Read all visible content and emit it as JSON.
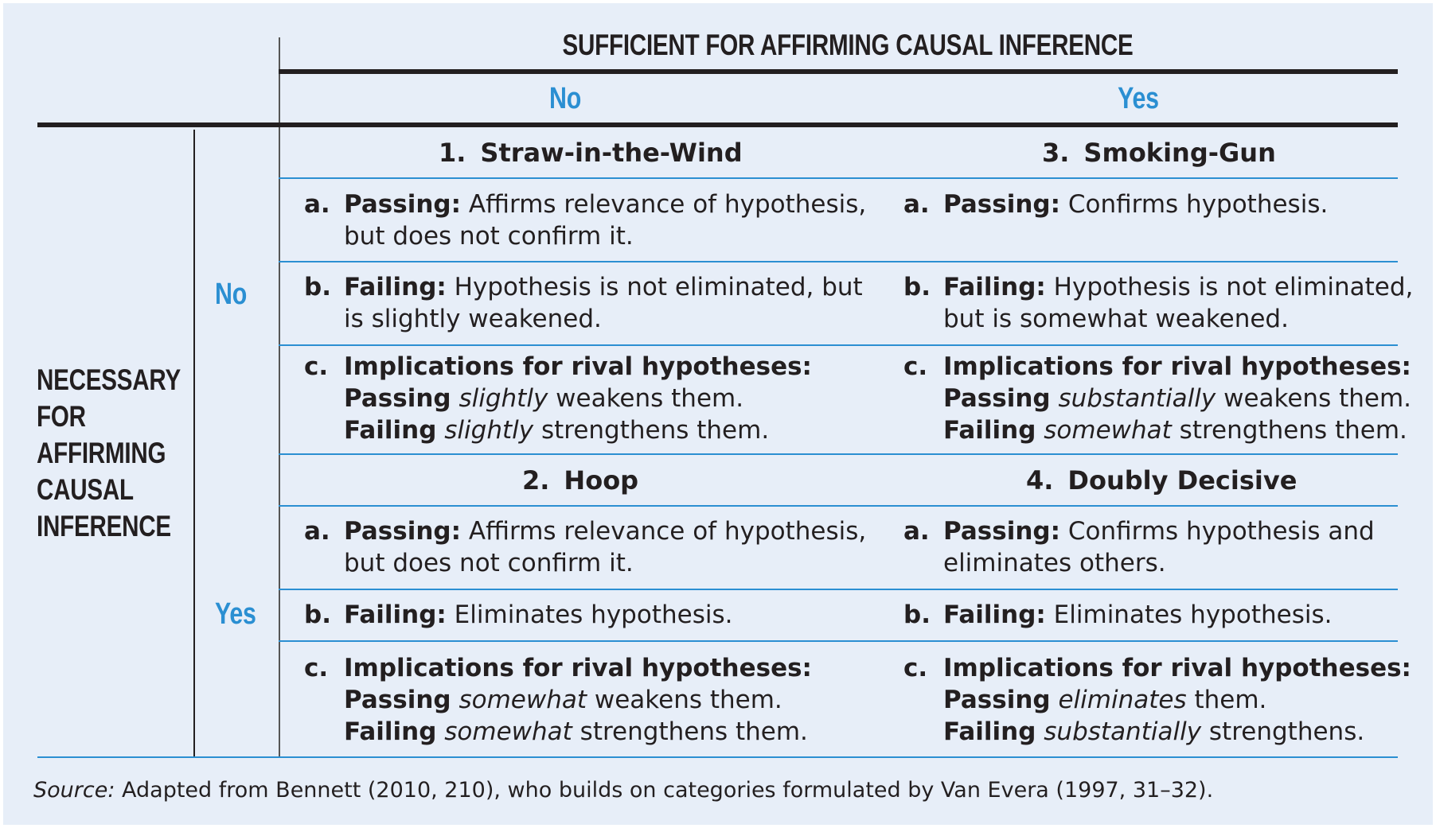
{
  "header": {
    "sufficient_title": "SUFFICIENT FOR AFFIRMING CAUSAL INFERENCE",
    "col_no": "No",
    "col_yes": "Yes"
  },
  "side": {
    "necessary_lines": [
      "NECESSARY",
      "FOR",
      "AFFIRMING",
      "CAUSAL",
      "INFERENCE"
    ],
    "row_no": "No",
    "row_yes": "Yes"
  },
  "tests": {
    "straw": {
      "num": "1.",
      "name": "Straw-in-the-Wind",
      "a": {
        "letter": "a.",
        "label": "Passing:",
        "line1": " Affirms relevance of hypothesis,",
        "line2": "but does not confirm it."
      },
      "b": {
        "letter": "b.",
        "label": "Failing:",
        "line1": " Hypothesis is not eliminated, but",
        "line2": "is slightly weakened."
      },
      "c": {
        "letter": "c.",
        "heading": "Implications for rival hypotheses:",
        "pass_label": "Passing",
        "pass_adv": "slightly",
        "pass_rest": " weakens them.",
        "fail_label": "Failing",
        "fail_adv": "slightly",
        "fail_rest": " strengthens them."
      }
    },
    "smoking": {
      "num": "3.",
      "name": "Smoking-Gun",
      "a": {
        "letter": "a.",
        "label": "Passing:",
        "line1": " Confirms hypothesis.",
        "line2": ""
      },
      "b": {
        "letter": "b.",
        "label": "Failing:",
        "line1": " Hypothesis is not eliminated,",
        "line2": "but is somewhat weakened."
      },
      "c": {
        "letter": "c.",
        "heading": "Implications for rival hypotheses:",
        "pass_label": "Passing",
        "pass_adv": "substantially",
        "pass_rest": " weakens them.",
        "fail_label": "Failing",
        "fail_adv": "somewhat",
        "fail_rest": " strengthens them."
      }
    },
    "hoop": {
      "num": "2.",
      "name": "Hoop",
      "a": {
        "letter": "a.",
        "label": "Passing:",
        "line1": " Affirms relevance of hypothesis,",
        "line2": "but does not confirm it."
      },
      "b": {
        "letter": "b.",
        "label": "Failing:",
        "line1": " Eliminates hypothesis.",
        "line2": ""
      },
      "c": {
        "letter": "c.",
        "heading": "Implications for rival hypotheses:",
        "pass_label": "Passing",
        "pass_adv": "somewhat",
        "pass_rest": " weakens them.",
        "fail_label": "Failing",
        "fail_adv": "somewhat",
        "fail_rest": " strengthens them."
      }
    },
    "doubly": {
      "num": "4.",
      "name": "Doubly Decisive",
      "a": {
        "letter": "a.",
        "label": "Passing:",
        "line1": " Confirms hypothesis and",
        "line2": "eliminates others."
      },
      "b": {
        "letter": "b.",
        "label": "Failing:",
        "line1": " Eliminates hypothesis.",
        "line2": ""
      },
      "c": {
        "letter": "c.",
        "heading": "Implications for rival hypotheses:",
        "pass_label": "Passing",
        "pass_adv": "eliminates",
        "pass_rest": " them.",
        "fail_label": "Failing",
        "fail_adv": "substantially",
        "fail_rest": " strengthens."
      }
    }
  },
  "source": {
    "label": "Source:",
    "text": " Adapted from Bennett (2010, 210), who builds on categories formulated by Van Evera (1997, 31–32)."
  },
  "colors": {
    "accent_blue": "#2b8fd2",
    "text": "#231f20",
    "background": "#e7eef8"
  }
}
